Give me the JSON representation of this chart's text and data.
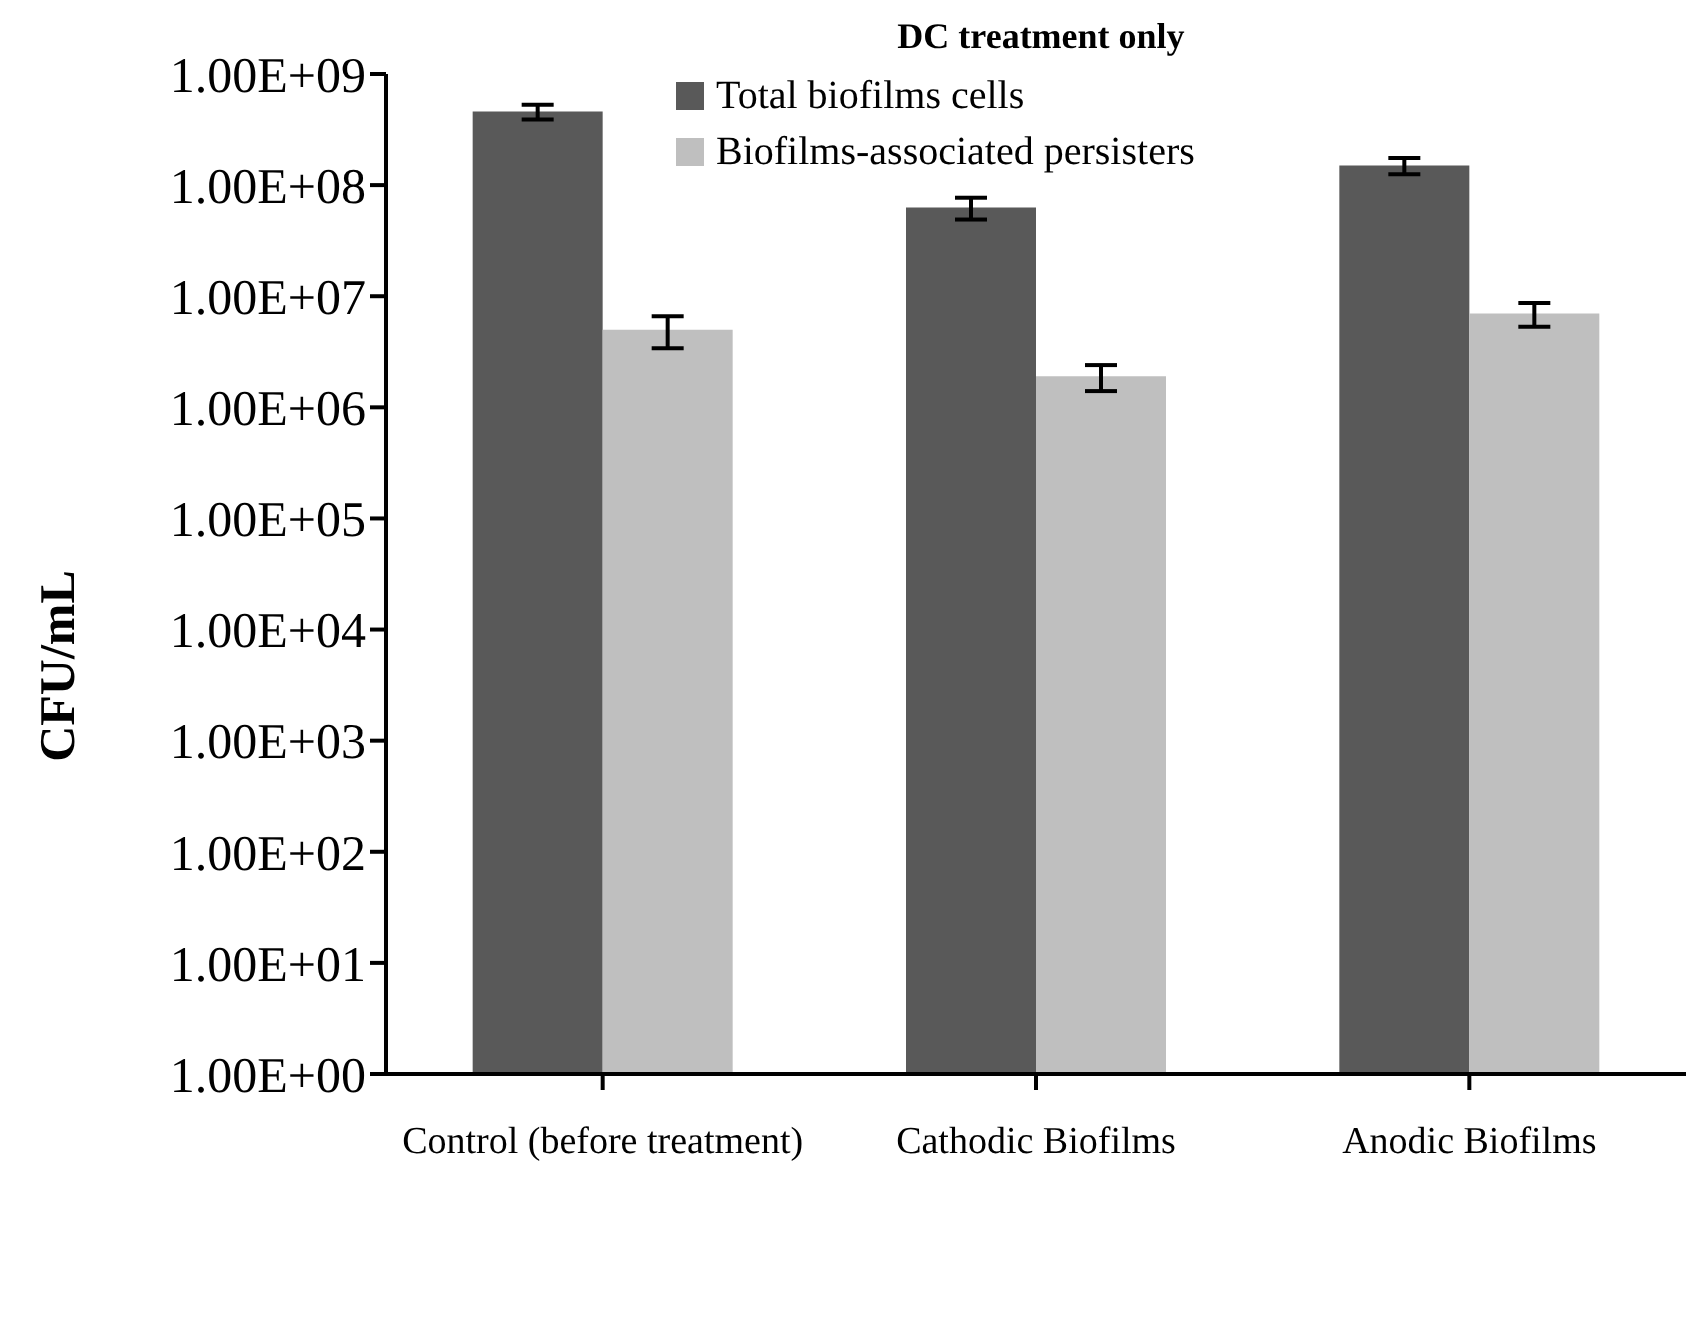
{
  "chart_data": {
    "type": "bar",
    "title": "DC treatment only",
    "ylabel": "CFU/mL",
    "categories": [
      "Control (before treatment)",
      "Cathodic Biofilms",
      "Anodic Biofilms"
    ],
    "series": [
      {
        "name": "Total biofilms cells",
        "color": "#595959",
        "values": [
          460000000,
          63000000,
          150000000
        ],
        "errors": [
          70000000,
          14000000,
          25000000
        ]
      },
      {
        "name": "Biofilms-associated persisters",
        "color": "#bfbfbf",
        "values": [
          5000000,
          1900000,
          7000000
        ],
        "errors": [
          1600000,
          500000,
          1700000
        ]
      }
    ],
    "log": true,
    "ylim": [
      1,
      1000000000
    ],
    "yticks": [
      {
        "value": 1,
        "label": "1.00E+00"
      },
      {
        "value": 10,
        "label": "1.00E+01"
      },
      {
        "value": 100,
        "label": "1.00E+02"
      },
      {
        "value": 1000,
        "label": "1.00E+03"
      },
      {
        "value": 10000,
        "label": "1.00E+04"
      },
      {
        "value": 100000,
        "label": "1.00E+05"
      },
      {
        "value": 1000000,
        "label": "1.00E+06"
      },
      {
        "value": 10000000,
        "label": "1.00E+07"
      },
      {
        "value": 100000000,
        "label": "1.00E+08"
      },
      {
        "value": 1000000000,
        "label": "1.00E+09"
      }
    ],
    "grid": false,
    "legend": "top"
  }
}
